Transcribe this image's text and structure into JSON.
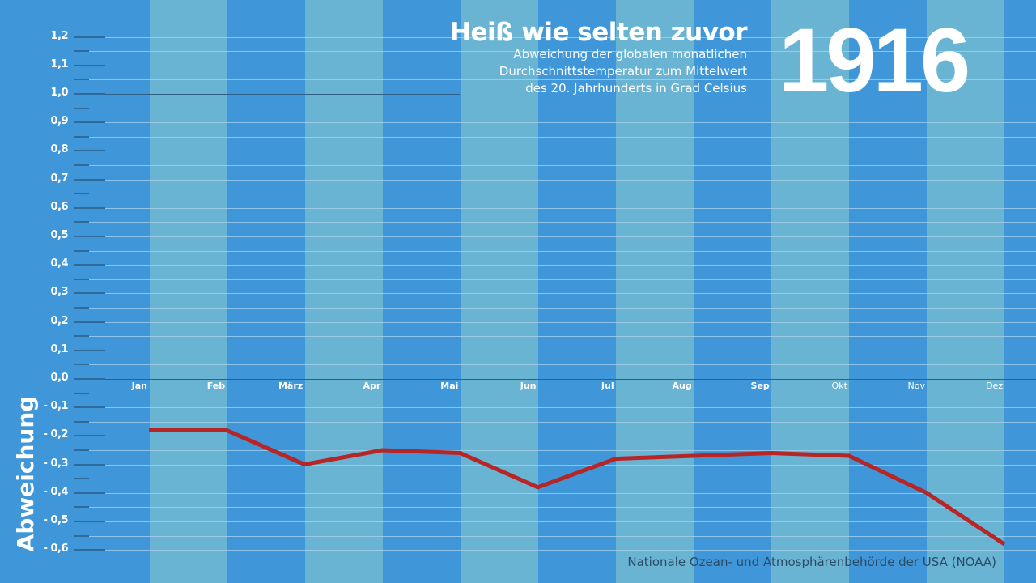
{
  "header": {
    "title": "Heiß wie selten zuvor",
    "subtitle_lines": [
      "Abweichung der globalen monatlichen",
      "Durchschnittstemperatur zum Mittelwert",
      "des 20. Jahrhunderts in Grad Celsius"
    ],
    "year": "1916"
  },
  "axis": {
    "y_title": "Abweichung",
    "y_ticks": [
      "1,2",
      "1,1",
      "1,0",
      "0,9",
      "0,8",
      "0,7",
      "0,6",
      "0,5",
      "0,4",
      "0,3",
      "0,2",
      "0,1",
      "0,0",
      "- 0,1",
      "- 0,2",
      "- 0,3",
      "- 0,4",
      "- 0,5",
      "- 0,6"
    ],
    "months": [
      "Jan",
      "Feb",
      "März",
      "Apr",
      "Mai",
      "Jun",
      "Jul",
      "Aug",
      "Sep",
      "Okt",
      "Nov",
      "Dez"
    ]
  },
  "source": "Nationale Ozean- und Atmosphärenbehörde der USA (NOAA)",
  "colors": {
    "background_dark": "#3f97d9",
    "background_light": "#69b3d3",
    "line": "#b82525",
    "text": "#ffffff",
    "source_text": "#2b4a66",
    "zero_line": "#2f5f85",
    "gridline": "#a9d3ee"
  },
  "chart_data": {
    "type": "line",
    "title": "Heiß wie selten zuvor",
    "subtitle": "Abweichung der globalen monatlichen Durchschnittstemperatur zum Mittelwert des 20. Jahrhunderts in Grad Celsius",
    "year": "1916",
    "xlabel": "",
    "ylabel": "Abweichung",
    "categories": [
      "Jan",
      "Feb",
      "März",
      "Apr",
      "Mai",
      "Jun",
      "Jul",
      "Aug",
      "Sep",
      "Okt",
      "Nov",
      "Dez"
    ],
    "series": [
      {
        "name": "1916",
        "values": [
          -0.18,
          -0.18,
          -0.3,
          -0.25,
          -0.26,
          -0.38,
          -0.28,
          -0.27,
          -0.26,
          -0.27,
          -0.4,
          -0.58
        ]
      }
    ],
    "ylim": [
      -0.6,
      1.2
    ],
    "y_tick_step": 0.1,
    "grid": true,
    "legend": null,
    "source": "Nationale Ozean- und Atmosphärenbehörde der USA (NOAA)"
  }
}
